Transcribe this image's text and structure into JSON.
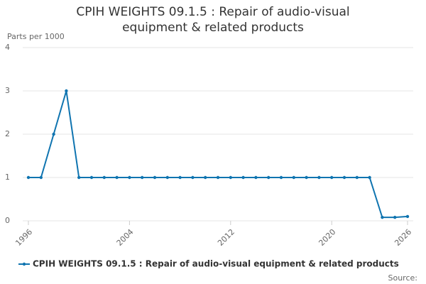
{
  "chart_data": {
    "type": "line",
    "title": "CPIH WEIGHTS 09.1.5 : Repair of audio-visual equipment & related products",
    "y_label": "Parts per 1000",
    "source": "Source:",
    "x": [
      1996,
      1997,
      1998,
      1999,
      2000,
      2001,
      2002,
      2003,
      2004,
      2005,
      2006,
      2007,
      2008,
      2009,
      2010,
      2011,
      2012,
      2013,
      2014,
      2015,
      2016,
      2017,
      2018,
      2019,
      2020,
      2021,
      2022,
      2023,
      2024,
      2025,
      2026
    ],
    "series": [
      {
        "name": "CPIH WEIGHTS 09.1.5 : Repair of audio-visual equipment & related products",
        "color": "#0f74b0",
        "values": [
          1,
          1,
          2,
          3,
          1,
          1,
          1,
          1,
          1,
          1,
          1,
          1,
          1,
          1,
          1,
          1,
          1,
          1,
          1,
          1,
          1,
          1,
          1,
          1,
          1,
          1,
          1,
          1,
          0.08,
          0.08,
          0.1
        ]
      }
    ],
    "xlim": [
      1996,
      2026
    ],
    "xticks": [
      1996,
      2004,
      2012,
      2020,
      2026
    ],
    "ylim": [
      0,
      4
    ],
    "yticks": [
      0,
      1,
      2,
      3,
      4
    ],
    "grid": true
  }
}
